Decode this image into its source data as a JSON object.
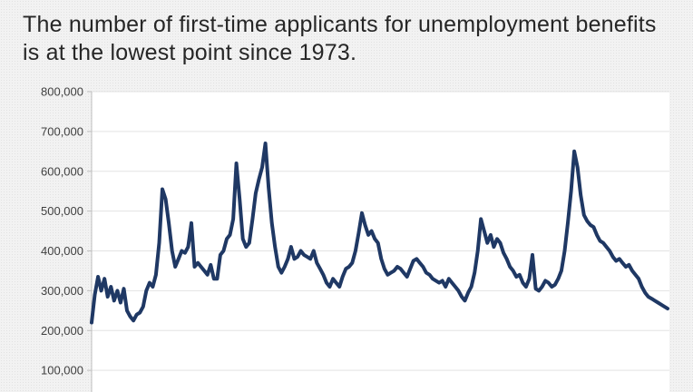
{
  "title": "The number of first-time applicants for unemployment benefits is at the lowest point since 1973.",
  "chart_data": {
    "type": "line",
    "title": "The number of first-time applicants for unemployment benefits is at the lowest point since 1973.",
    "xlabel": "",
    "ylabel": "",
    "ylim": [
      0,
      800000
    ],
    "yticks": [
      100000,
      200000,
      300000,
      400000,
      500000,
      600000,
      700000,
      800000
    ],
    "ytick_labels": [
      "100,000",
      "200,000",
      "300,000",
      "400,000",
      "500,000",
      "600,000",
      "700,000",
      "800,000"
    ],
    "grid": true,
    "legend": "none",
    "line_color": "#1f3864",
    "series": [
      {
        "values": [
          220000,
          290000,
          335000,
          300000,
          330000,
          285000,
          310000,
          275000,
          300000,
          270000,
          305000,
          250000,
          235000,
          225000,
          240000,
          245000,
          260000,
          300000,
          320000,
          310000,
          340000,
          420000,
          555000,
          530000,
          470000,
          400000,
          360000,
          380000,
          400000,
          395000,
          410000,
          470000,
          360000,
          370000,
          360000,
          350000,
          340000,
          365000,
          330000,
          330000,
          390000,
          400000,
          430000,
          440000,
          480000,
          620000,
          530000,
          430000,
          410000,
          420000,
          480000,
          545000,
          580000,
          610000,
          670000,
          560000,
          470000,
          410000,
          360000,
          345000,
          360000,
          380000,
          410000,
          380000,
          385000,
          400000,
          390000,
          385000,
          380000,
          400000,
          370000,
          355000,
          340000,
          320000,
          310000,
          330000,
          320000,
          310000,
          335000,
          355000,
          360000,
          370000,
          400000,
          445000,
          495000,
          465000,
          440000,
          450000,
          430000,
          420000,
          380000,
          355000,
          340000,
          345000,
          350000,
          360000,
          355000,
          345000,
          335000,
          355000,
          375000,
          380000,
          370000,
          360000,
          345000,
          340000,
          330000,
          325000,
          320000,
          325000,
          310000,
          330000,
          320000,
          310000,
          300000,
          285000,
          275000,
          295000,
          310000,
          345000,
          400000,
          480000,
          450000,
          420000,
          440000,
          410000,
          430000,
          420000,
          395000,
          380000,
          360000,
          350000,
          335000,
          340000,
          320000,
          310000,
          330000,
          390000,
          305000,
          300000,
          310000,
          325000,
          320000,
          310000,
          315000,
          330000,
          350000,
          400000,
          470000,
          550000,
          650000,
          610000,
          540000,
          490000,
          475000,
          465000,
          460000,
          440000,
          425000,
          420000,
          410000,
          400000,
          385000,
          375000,
          380000,
          370000,
          360000,
          365000,
          350000,
          340000,
          330000,
          310000,
          295000,
          285000,
          280000,
          275000,
          270000,
          265000,
          260000,
          255000
        ]
      }
    ]
  }
}
